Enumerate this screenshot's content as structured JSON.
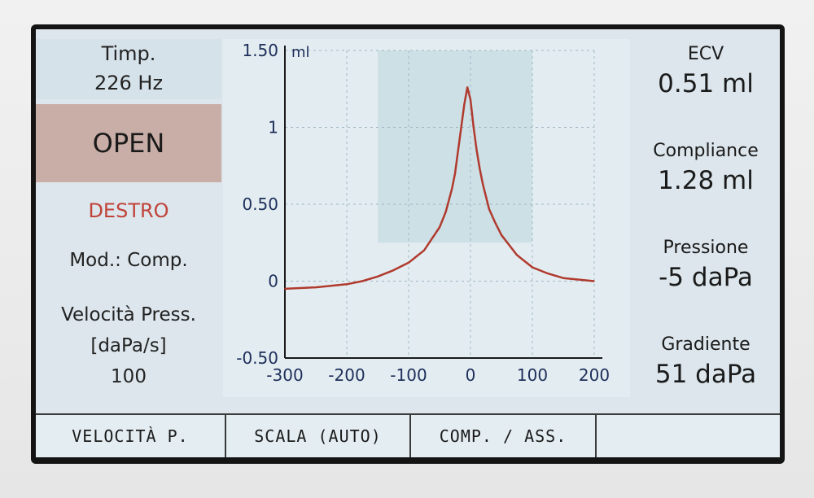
{
  "left_panel": {
    "probe_title": "Timp.",
    "probe_freq": "226 Hz",
    "status": "OPEN",
    "ear": "DESTRO",
    "mode": "Mod.: Comp.",
    "speed_label_1": "Velocità Press.",
    "speed_label_2": "[daPa/s]",
    "speed_value": "100"
  },
  "right_panel": {
    "ecv_label": "ECV",
    "ecv_value": "0.51 ml",
    "compliance_label": "Compliance",
    "compliance_value": "1.28 ml",
    "pressure_label": "Pressione",
    "pressure_value": "-5 daPa",
    "gradient_label": "Gradiente",
    "gradient_value": "51 daPa"
  },
  "softkeys": [
    "VELOCITÀ P.",
    "SCALA (AUTO)",
    "COMP. / ASS.",
    ""
  ],
  "colors": {
    "curve": "#b03a2e",
    "status_bg": "#c8aea6",
    "ear_text": "#c0433a",
    "axis": "#1a1a1a",
    "tick_text": "#1e2e5a"
  },
  "chart_data": {
    "type": "line",
    "title": "",
    "xlabel": "",
    "ylabel": "ml",
    "xlim": [
      -300,
      200
    ],
    "ylim": [
      -0.5,
      1.5
    ],
    "x_ticks": [
      "-300",
      "-200",
      "-100",
      "0",
      "100",
      "200"
    ],
    "y_ticks": [
      "1.50",
      "1",
      "0.50",
      "0",
      "-0.50"
    ],
    "grid": true,
    "series": [
      {
        "x": [
          -300,
          -250,
          -200,
          -175,
          -150,
          -125,
          -100,
          -75,
          -50,
          -40,
          -30,
          -25,
          -20,
          -15,
          -10,
          -5,
          0,
          5,
          10,
          15,
          20,
          30,
          40,
          50,
          75,
          100,
          125,
          150,
          175,
          200
        ],
        "values": [
          -0.05,
          -0.04,
          -0.02,
          0.0,
          0.03,
          0.07,
          0.12,
          0.2,
          0.35,
          0.45,
          0.6,
          0.7,
          0.85,
          1.0,
          1.15,
          1.26,
          1.18,
          1.0,
          0.85,
          0.73,
          0.63,
          0.47,
          0.38,
          0.3,
          0.17,
          0.09,
          0.05,
          0.02,
          0.01,
          0.0
        ]
      }
    ]
  }
}
